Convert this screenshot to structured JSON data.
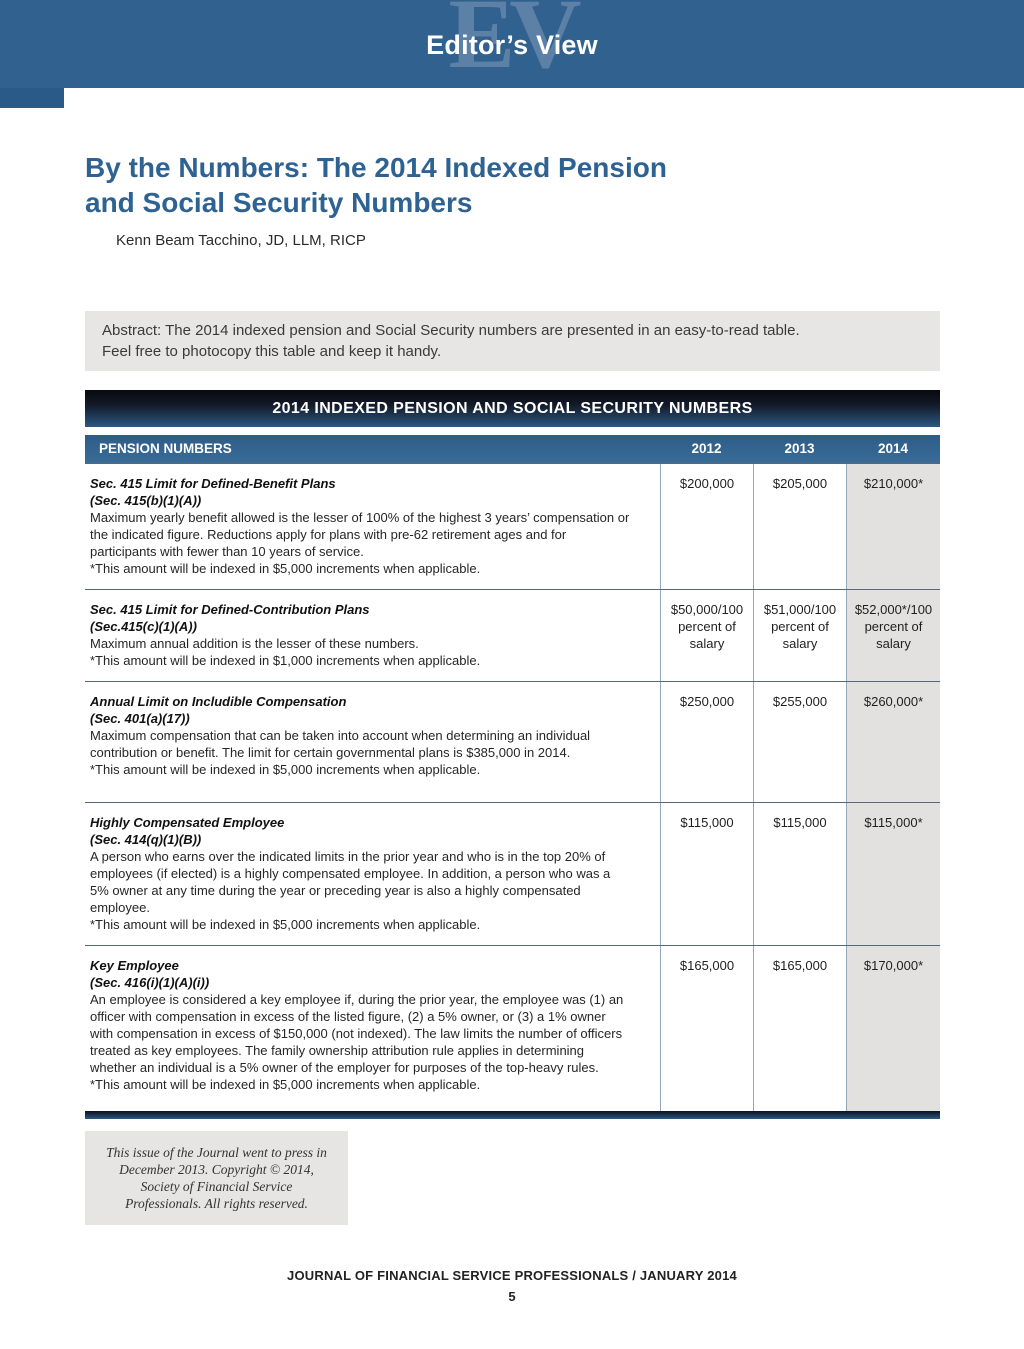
{
  "banner": {
    "monogram": "EV",
    "title": "Editor’s View"
  },
  "article": {
    "title_line1": "By the Numbers: The 2014 Indexed Pension",
    "title_line2": "and Social Security Numbers",
    "author": "Kenn Beam Tacchino, JD, LLM, RICP",
    "abstract_line1": "Abstract: The 2014 indexed pension and Social Security numbers are presented in an easy-to-read table.",
    "abstract_line2": "Feel free to photocopy this table and keep it handy."
  },
  "table": {
    "title": "2014 INDEXED PENSION AND SOCIAL SECURITY NUMBERS",
    "columns": [
      "PENSION NUMBERS",
      "2012",
      "2013",
      "2014"
    ],
    "rows": [
      {
        "name": "Sec. 415 Limit for Defined-Benefit Plans",
        "section": "(Sec. 415(b)(1)(A))",
        "description": "Maximum yearly benefit allowed is the lesser of 100% of the highest 3 years’ compensation or the indicated figure. Reductions apply for plans with pre-62 retirement ages and for participants with fewer than 10 years of service.",
        "footnote": "*This amount will be indexed in $5,000 increments when applicable.",
        "v2012": "$200,000",
        "v2013": "$205,000",
        "v2014": "$210,000*"
      },
      {
        "name": "Sec. 415 Limit for Defined-Contribution Plans",
        "section": "(Sec.415(c)(1)(A))",
        "description": "Maximum annual addition is the lesser of these numbers.",
        "footnote": "*This amount will be indexed in $1,000 increments when applicable.",
        "v2012": "$50,000/100 percent of salary",
        "v2013": "$51,000/100 percent of salary",
        "v2014": "$52,000*/100 percent of salary"
      },
      {
        "name": "Annual Limit on Includible Compensation",
        "section": "(Sec. 401(a)(17))",
        "description": "Maximum compensation that can be taken into account when determining an individual contribution or benefit. The limit for certain governmental plans is $385,000 in 2014.",
        "footnote": "*This amount will be indexed in $5,000 increments when applicable.",
        "v2012": "$250,000",
        "v2013": "$255,000",
        "v2014": "$260,000*"
      },
      {
        "name": "Highly Compensated Employee",
        "section": "(Sec. 414(q)(1)(B))",
        "description": "A person who earns over the indicated limits in the prior year and who is in the top 20% of employees (if elected) is a highly compensated employee. In addition, a person who was a 5% owner at any time during the year or preceding year is also a highly compensated employee.",
        "footnote": "*This amount will be indexed in $5,000 increments when applicable.",
        "v2012": "$115,000",
        "v2013": "$115,000",
        "v2014": "$115,000*"
      },
      {
        "name": "Key Employee",
        "section": "(Sec. 416(i)(1)(A)(i))",
        "description": "An employee is considered a key employee if, during the prior year, the employee was (1) an officer with compensation in excess of the listed figure, (2) a 5% owner, or (3) a 1% owner with compensation in excess of $150,000 (not indexed). The law limits the number of officers treated as key employees. The family ownership attribution rule applies in determining whether an individual is a 5% owner of the employer for purposes of the top-heavy rules.",
        "footnote": "*This amount will be indexed in $5,000 increments when applicable.",
        "v2012": "$165,000",
        "v2013": "$165,000",
        "v2014": "$170,000*"
      }
    ]
  },
  "colophon": "This issue of the Journal went to press in December 2013. Copyright © 2014, Society of Financial Service Professionals. All rights reserved.",
  "footer": {
    "journal_line": "JOURNAL OF FINANCIAL SERVICE PROFESSIONALS / JANUARY 2014",
    "page_number": "5"
  },
  "colors": {
    "banner_blue": "#31618e",
    "monogram_blue": "#5d80a6",
    "title_blue": "#2e6292",
    "header_gradient_top": "#08090f",
    "header_gradient_bottom": "#2b5884",
    "abstract_gray": "#e7e6e4",
    "highlight_column_gray": "#e2e1df"
  }
}
